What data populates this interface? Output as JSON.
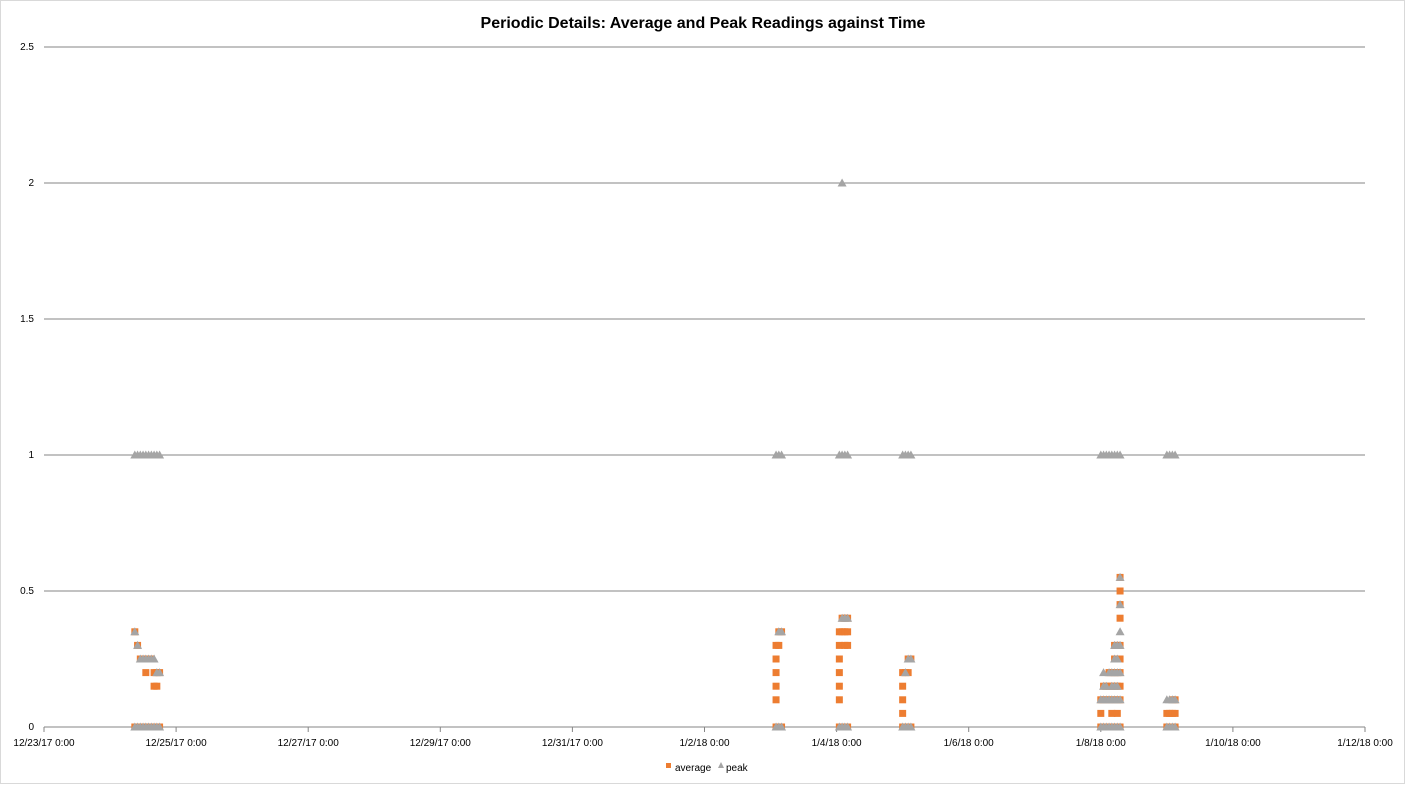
{
  "chart_data": {
    "type": "scatter",
    "title": "Periodic Details: Average and Peak Readings against Time",
    "xlabel": "",
    "ylabel": "",
    "xlim": [
      "2017-12-23T00:00",
      "2018-01-12T00:00"
    ],
    "ylim": [
      0,
      2.5
    ],
    "x_tick_labels": [
      "12/23/17 0:00",
      "12/25/17 0:00",
      "12/27/17 0:00",
      "12/29/17 0:00",
      "12/31/17 0:00",
      "1/2/18 0:00",
      "1/4/18 0:00",
      "1/6/18 0:00",
      "1/8/18 0:00",
      "1/10/18 0:00",
      "1/12/18 0:00"
    ],
    "y_tick_labels": [
      "0",
      "0.5",
      "1",
      "1.5",
      "2",
      "2.5"
    ],
    "grid": true,
    "legend_position": "bottom",
    "colors": {
      "average": "#ed7d31",
      "peak": "#a5a5a5",
      "grid": "#868686"
    },
    "series": [
      {
        "name": "average",
        "marker": "square",
        "points": [
          [
            "2017-12-24T09:00",
            0.35
          ],
          [
            "2017-12-24T09:00",
            0
          ],
          [
            "2017-12-24T10:00",
            0.3
          ],
          [
            "2017-12-24T10:00",
            0
          ],
          [
            "2017-12-24T11:00",
            0.25
          ],
          [
            "2017-12-24T11:00",
            0
          ],
          [
            "2017-12-24T12:00",
            0.25
          ],
          [
            "2017-12-24T12:00",
            0
          ],
          [
            "2017-12-24T13:00",
            0.2
          ],
          [
            "2017-12-24T13:00",
            0
          ],
          [
            "2017-12-24T14:00",
            0.25
          ],
          [
            "2017-12-24T14:00",
            0
          ],
          [
            "2017-12-24T15:00",
            0.25
          ],
          [
            "2017-12-24T15:00",
            0
          ],
          [
            "2017-12-24T16:00",
            0.2
          ],
          [
            "2017-12-24T16:00",
            0.15
          ],
          [
            "2017-12-24T16:00",
            0
          ],
          [
            "2017-12-24T17:00",
            0.2
          ],
          [
            "2017-12-24T17:00",
            0.15
          ],
          [
            "2017-12-24T17:00",
            0
          ],
          [
            "2017-12-24T18:00",
            0.2
          ],
          [
            "2017-12-24T18:00",
            0
          ],
          [
            "2018-01-03T02:00",
            0.3
          ],
          [
            "2018-01-03T02:00",
            0.25
          ],
          [
            "2018-01-03T02:00",
            0.2
          ],
          [
            "2018-01-03T02:00",
            0.15
          ],
          [
            "2018-01-03T02:00",
            0.1
          ],
          [
            "2018-01-03T02:00",
            0
          ],
          [
            "2018-01-03T03:00",
            0.35
          ],
          [
            "2018-01-03T03:00",
            0.3
          ],
          [
            "2018-01-03T03:00",
            0
          ],
          [
            "2018-01-03T04:00",
            0.35
          ],
          [
            "2018-01-03T04:00",
            0
          ],
          [
            "2018-01-04T01:00",
            0.35
          ],
          [
            "2018-01-04T01:00",
            0.3
          ],
          [
            "2018-01-04T01:00",
            0.25
          ],
          [
            "2018-01-04T01:00",
            0.2
          ],
          [
            "2018-01-04T01:00",
            0.15
          ],
          [
            "2018-01-04T01:00",
            0.1
          ],
          [
            "2018-01-04T01:00",
            0
          ],
          [
            "2018-01-04T02:00",
            0.4
          ],
          [
            "2018-01-04T02:00",
            0.35
          ],
          [
            "2018-01-04T02:00",
            0
          ],
          [
            "2018-01-04T03:00",
            0.4
          ],
          [
            "2018-01-04T03:00",
            0.35
          ],
          [
            "2018-01-04T03:00",
            0.3
          ],
          [
            "2018-01-04T03:00",
            0
          ],
          [
            "2018-01-04T04:00",
            0.4
          ],
          [
            "2018-01-04T04:00",
            0.35
          ],
          [
            "2018-01-04T04:00",
            0.3
          ],
          [
            "2018-01-04T04:00",
            0
          ],
          [
            "2018-01-05T00:00",
            0.2
          ],
          [
            "2018-01-05T00:00",
            0.15
          ],
          [
            "2018-01-05T00:00",
            0.1
          ],
          [
            "2018-01-05T00:00",
            0.05
          ],
          [
            "2018-01-05T00:00",
            0
          ],
          [
            "2018-01-05T01:00",
            0.2
          ],
          [
            "2018-01-05T01:00",
            0
          ],
          [
            "2018-01-05T02:00",
            0.25
          ],
          [
            "2018-01-05T02:00",
            0.2
          ],
          [
            "2018-01-05T02:00",
            0
          ],
          [
            "2018-01-05T03:00",
            0.25
          ],
          [
            "2018-01-05T03:00",
            0
          ],
          [
            "2018-01-08T00:00",
            0.1
          ],
          [
            "2018-01-08T00:00",
            0.05
          ],
          [
            "2018-01-08T00:00",
            0
          ],
          [
            "2018-01-08T01:00",
            0.15
          ],
          [
            "2018-01-08T01:00",
            0.1
          ],
          [
            "2018-01-08T01:00",
            0
          ],
          [
            "2018-01-08T02:00",
            0.15
          ],
          [
            "2018-01-08T02:00",
            0.1
          ],
          [
            "2018-01-08T02:00",
            0
          ],
          [
            "2018-01-08T03:00",
            0.2
          ],
          [
            "2018-01-08T03:00",
            0.15
          ],
          [
            "2018-01-08T03:00",
            0.1
          ],
          [
            "2018-01-08T03:00",
            0
          ],
          [
            "2018-01-08T04:00",
            0.2
          ],
          [
            "2018-01-08T04:00",
            0.15
          ],
          [
            "2018-01-08T04:00",
            0.1
          ],
          [
            "2018-01-08T04:00",
            0.05
          ],
          [
            "2018-01-08T04:00",
            0
          ],
          [
            "2018-01-08T05:00",
            0.3
          ],
          [
            "2018-01-08T05:00",
            0.25
          ],
          [
            "2018-01-08T05:00",
            0.2
          ],
          [
            "2018-01-08T05:00",
            0.15
          ],
          [
            "2018-01-08T05:00",
            0.1
          ],
          [
            "2018-01-08T05:00",
            0
          ],
          [
            "2018-01-08T06:00",
            0.3
          ],
          [
            "2018-01-08T06:00",
            0.25
          ],
          [
            "2018-01-08T06:00",
            0.2
          ],
          [
            "2018-01-08T06:00",
            0.15
          ],
          [
            "2018-01-08T06:00",
            0.1
          ],
          [
            "2018-01-08T06:00",
            0.05
          ],
          [
            "2018-01-08T06:00",
            0
          ],
          [
            "2018-01-08T07:00",
            0.55
          ],
          [
            "2018-01-08T07:00",
            0.5
          ],
          [
            "2018-01-08T07:00",
            0.45
          ],
          [
            "2018-01-08T07:00",
            0.4
          ],
          [
            "2018-01-08T07:00",
            0.3
          ],
          [
            "2018-01-08T07:00",
            0.25
          ],
          [
            "2018-01-08T07:00",
            0.2
          ],
          [
            "2018-01-08T07:00",
            0.15
          ],
          [
            "2018-01-08T07:00",
            0.1
          ],
          [
            "2018-01-08T07:00",
            0
          ],
          [
            "2018-01-09T00:00",
            0.05
          ],
          [
            "2018-01-09T00:00",
            0
          ],
          [
            "2018-01-09T01:00",
            0.05
          ],
          [
            "2018-01-09T01:00",
            0
          ],
          [
            "2018-01-09T02:00",
            0.1
          ],
          [
            "2018-01-09T02:00",
            0.05
          ],
          [
            "2018-01-09T02:00",
            0
          ],
          [
            "2018-01-09T03:00",
            0.1
          ],
          [
            "2018-01-09T03:00",
            0.05
          ],
          [
            "2018-01-09T03:00",
            0
          ]
        ]
      },
      {
        "name": "peak",
        "marker": "triangle",
        "points": [
          [
            "2017-12-24T09:00",
            1
          ],
          [
            "2017-12-24T09:00",
            0.35
          ],
          [
            "2017-12-24T09:00",
            0
          ],
          [
            "2017-12-24T10:00",
            1
          ],
          [
            "2017-12-24T10:00",
            0.3
          ],
          [
            "2017-12-24T10:00",
            0
          ],
          [
            "2017-12-24T11:00",
            1
          ],
          [
            "2017-12-24T11:00",
            0.25
          ],
          [
            "2017-12-24T11:00",
            0
          ],
          [
            "2017-12-24T12:00",
            1
          ],
          [
            "2017-12-24T12:00",
            0.25
          ],
          [
            "2017-12-24T12:00",
            0
          ],
          [
            "2017-12-24T13:00",
            1
          ],
          [
            "2017-12-24T13:00",
            0.25
          ],
          [
            "2017-12-24T13:00",
            0
          ],
          [
            "2017-12-24T14:00",
            1
          ],
          [
            "2017-12-24T14:00",
            0.25
          ],
          [
            "2017-12-24T14:00",
            0
          ],
          [
            "2017-12-24T15:00",
            1
          ],
          [
            "2017-12-24T15:00",
            0.25
          ],
          [
            "2017-12-24T15:00",
            0
          ],
          [
            "2017-12-24T16:00",
            1
          ],
          [
            "2017-12-24T16:00",
            0.25
          ],
          [
            "2017-12-24T16:00",
            0
          ],
          [
            "2017-12-24T17:00",
            1
          ],
          [
            "2017-12-24T17:00",
            0.2
          ],
          [
            "2017-12-24T17:00",
            0
          ],
          [
            "2017-12-24T18:00",
            1
          ],
          [
            "2017-12-24T18:00",
            0.2
          ],
          [
            "2017-12-24T18:00",
            0
          ],
          [
            "2018-01-03T02:00",
            1
          ],
          [
            "2018-01-03T02:00",
            0
          ],
          [
            "2018-01-03T03:00",
            1
          ],
          [
            "2018-01-03T03:00",
            0.35
          ],
          [
            "2018-01-03T03:00",
            0
          ],
          [
            "2018-01-03T04:00",
            1
          ],
          [
            "2018-01-03T04:00",
            0.35
          ],
          [
            "2018-01-03T04:00",
            0
          ],
          [
            "2018-01-04T01:00",
            1
          ],
          [
            "2018-01-04T01:00",
            0
          ],
          [
            "2018-01-04T02:00",
            2
          ],
          [
            "2018-01-04T02:00",
            1
          ],
          [
            "2018-01-04T02:00",
            0.4
          ],
          [
            "2018-01-04T02:00",
            0
          ],
          [
            "2018-01-04T03:00",
            1
          ],
          [
            "2018-01-04T03:00",
            0.4
          ],
          [
            "2018-01-04T03:00",
            0
          ],
          [
            "2018-01-04T04:00",
            1
          ],
          [
            "2018-01-04T04:00",
            0.4
          ],
          [
            "2018-01-04T04:00",
            0
          ],
          [
            "2018-01-05T00:00",
            1
          ],
          [
            "2018-01-05T00:00",
            0
          ],
          [
            "2018-01-05T01:00",
            1
          ],
          [
            "2018-01-05T01:00",
            0.2
          ],
          [
            "2018-01-05T01:00",
            0
          ],
          [
            "2018-01-05T02:00",
            1
          ],
          [
            "2018-01-05T02:00",
            0.25
          ],
          [
            "2018-01-05T02:00",
            0
          ],
          [
            "2018-01-05T03:00",
            1
          ],
          [
            "2018-01-05T03:00",
            0.25
          ],
          [
            "2018-01-05T03:00",
            0
          ],
          [
            "2018-01-08T00:00",
            1
          ],
          [
            "2018-01-08T00:00",
            0.1
          ],
          [
            "2018-01-08T00:00",
            0
          ],
          [
            "2018-01-08T01:00",
            1
          ],
          [
            "2018-01-08T01:00",
            0.2
          ],
          [
            "2018-01-08T01:00",
            0.15
          ],
          [
            "2018-01-08T01:00",
            0.1
          ],
          [
            "2018-01-08T01:00",
            0
          ],
          [
            "2018-01-08T02:00",
            1
          ],
          [
            "2018-01-08T02:00",
            0.15
          ],
          [
            "2018-01-08T02:00",
            0.1
          ],
          [
            "2018-01-08T02:00",
            0
          ],
          [
            "2018-01-08T03:00",
            1
          ],
          [
            "2018-01-08T03:00",
            0.2
          ],
          [
            "2018-01-08T03:00",
            0.1
          ],
          [
            "2018-01-08T03:00",
            0
          ],
          [
            "2018-01-08T04:00",
            1
          ],
          [
            "2018-01-08T04:00",
            0.2
          ],
          [
            "2018-01-08T04:00",
            0.15
          ],
          [
            "2018-01-08T04:00",
            0.1
          ],
          [
            "2018-01-08T04:00",
            0
          ],
          [
            "2018-01-08T05:00",
            1
          ],
          [
            "2018-01-08T05:00",
            0.3
          ],
          [
            "2018-01-08T05:00",
            0.25
          ],
          [
            "2018-01-08T05:00",
            0.2
          ],
          [
            "2018-01-08T05:00",
            0.15
          ],
          [
            "2018-01-08T05:00",
            0.1
          ],
          [
            "2018-01-08T05:00",
            0
          ],
          [
            "2018-01-08T06:00",
            1
          ],
          [
            "2018-01-08T06:00",
            0.3
          ],
          [
            "2018-01-08T06:00",
            0.25
          ],
          [
            "2018-01-08T06:00",
            0.2
          ],
          [
            "2018-01-08T06:00",
            0.15
          ],
          [
            "2018-01-08T06:00",
            0.1
          ],
          [
            "2018-01-08T06:00",
            0
          ],
          [
            "2018-01-08T07:00",
            1
          ],
          [
            "2018-01-08T07:00",
            0.55
          ],
          [
            "2018-01-08T07:00",
            0.45
          ],
          [
            "2018-01-08T07:00",
            0.35
          ],
          [
            "2018-01-08T07:00",
            0.3
          ],
          [
            "2018-01-08T07:00",
            0.2
          ],
          [
            "2018-01-08T07:00",
            0.1
          ],
          [
            "2018-01-08T07:00",
            0
          ],
          [
            "2018-01-09T00:00",
            1
          ],
          [
            "2018-01-09T00:00",
            0.1
          ],
          [
            "2018-01-09T00:00",
            0
          ],
          [
            "2018-01-09T01:00",
            1
          ],
          [
            "2018-01-09T01:00",
            0.1
          ],
          [
            "2018-01-09T01:00",
            0
          ],
          [
            "2018-01-09T02:00",
            1
          ],
          [
            "2018-01-09T02:00",
            0.1
          ],
          [
            "2018-01-09T02:00",
            0
          ],
          [
            "2018-01-09T03:00",
            1
          ],
          [
            "2018-01-09T03:00",
            0.1
          ],
          [
            "2018-01-09T03:00",
            0
          ]
        ]
      }
    ]
  }
}
